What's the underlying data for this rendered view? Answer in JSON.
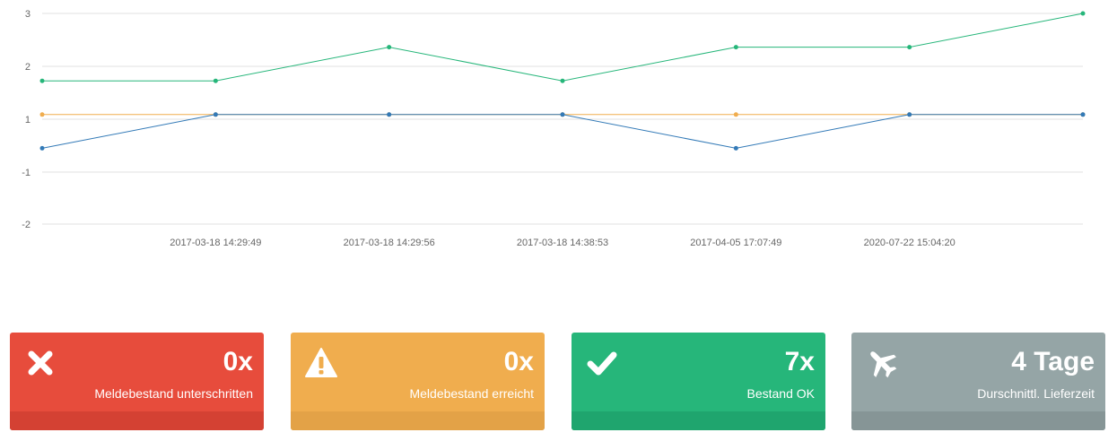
{
  "chart_data": {
    "type": "line",
    "x": [
      "",
      "2017-03-18 14:29:49",
      "2017-03-18 14:29:56",
      "2017-03-18 14:38:53",
      "2017-04-05 17:07:49",
      "2020-07-22 15:04:20",
      ""
    ],
    "y_ticks": [
      "3",
      "2",
      "1",
      "-1",
      "-2"
    ],
    "series": [
      {
        "color": "#26b67a",
        "values": [
          1.4,
          1.4,
          2.2,
          1.4,
          2.2,
          2.2,
          3
        ]
      },
      {
        "color": "#f0ad4e",
        "values": [
          0.6,
          0.6,
          0.6,
          0.6,
          0.6,
          0.6,
          0.6
        ]
      },
      {
        "color": "#337ab7",
        "values": [
          -0.2,
          0.6,
          0.6,
          0.6,
          -0.2,
          0.6,
          0.6
        ]
      }
    ],
    "grid": true
  },
  "stats": [
    {
      "icon": "close-icon",
      "value": "0x",
      "label": "Meldebestand unterschritten",
      "color": "#e74c3c",
      "footer_color": "#d44133"
    },
    {
      "icon": "warning-icon",
      "value": "0x",
      "label": "Meldebestand erreicht",
      "color": "#f0ad4e",
      "footer_color": "#e3a247"
    },
    {
      "icon": "check-icon",
      "value": "7x",
      "label": "Bestand OK",
      "color": "#26b67a",
      "footer_color": "#1fa56e"
    },
    {
      "icon": "plane-icon",
      "value": "4 Tage",
      "label": "Durschnittl. Lieferzeit",
      "color": "#95a5a6",
      "footer_color": "#869596"
    }
  ]
}
